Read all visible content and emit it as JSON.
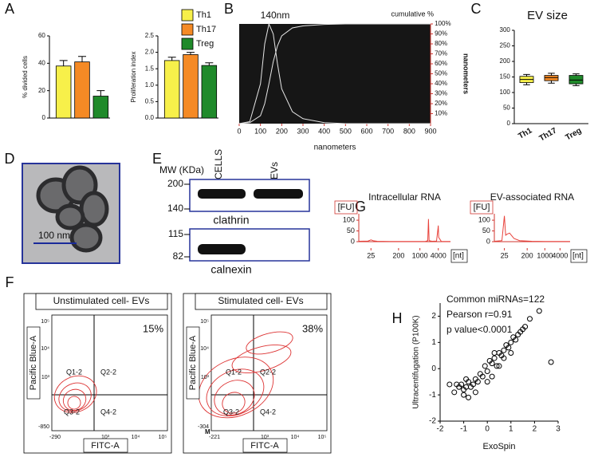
{
  "panel_labels": [
    "A",
    "B",
    "C",
    "D",
    "E",
    "F",
    "G",
    "H"
  ],
  "chart_data": [
    {
      "type": "bar",
      "ylabel": "% divided cells",
      "ylim": [
        0,
        60
      ],
      "yticks": [
        0,
        20,
        40,
        60
      ],
      "series": [
        {
          "name": "Th1",
          "color": "#f7f04a",
          "values": [
            38
          ],
          "errors": [
            4
          ]
        },
        {
          "name": "Th17",
          "color": "#f58a25",
          "values": [
            41
          ],
          "errors": [
            4
          ]
        },
        {
          "name": "Treg",
          "color": "#1f8a2a",
          "values": [
            16
          ],
          "errors": [
            4
          ]
        }
      ]
    },
    {
      "type": "bar",
      "ylabel": "Proliferation index",
      "ylim": [
        0,
        2.5
      ],
      "yticks": [
        {
          "value": 0,
          "label": "0.0"
        },
        {
          "value": 0.5,
          "label": "0.5"
        },
        {
          "value": 1,
          "label": "1.0"
        },
        {
          "value": 1.5,
          "label": "1.5"
        },
        {
          "value": 2,
          "label": "2.0"
        },
        {
          "value": 2.5,
          "label": "2.5"
        }
      ],
      "series": [
        {
          "color": "#f7f04a",
          "values": [
            1.75
          ],
          "errors": [
            0.1
          ]
        },
        {
          "color": "#f58a25",
          "values": [
            1.93
          ],
          "errors": [
            0.07
          ]
        },
        {
          "color": "#1f8a2a",
          "values": [
            1.6
          ],
          "errors": [
            0.08
          ]
        }
      ]
    },
    {
      "type": "line",
      "annotation": "140nm",
      "xlabel": "nanometers",
      "ylabel": "nanometers",
      "y2label": "cumulative %",
      "xlim": [
        0,
        900
      ],
      "xticks": [
        0,
        100,
        200,
        300,
        400,
        500,
        600,
        700,
        800,
        900
      ],
      "y2lim": [
        0,
        100
      ],
      "y2ticks": [
        {
          "value": 10,
          "label": "10%"
        },
        {
          "value": 20,
          "label": "20%"
        },
        {
          "value": 30,
          "label": "30%"
        },
        {
          "value": 40,
          "label": "40%"
        },
        {
          "value": 50,
          "label": "50%"
        },
        {
          "value": 60,
          "label": "60%"
        },
        {
          "value": 70,
          "label": "70%"
        },
        {
          "value": 80,
          "label": "80%"
        },
        {
          "value": 90,
          "label": "90%"
        },
        {
          "value": 100,
          "label": "100%"
        }
      ],
      "background": "#161616",
      "x": [
        0,
        50,
        100,
        120,
        140,
        160,
        180,
        200,
        250,
        300,
        400,
        500,
        600,
        700,
        800,
        900
      ],
      "series": [
        {
          "color": "#e6e6e6",
          "axis": "y2",
          "values": [
            0,
            2,
            40,
            80,
            100,
            90,
            60,
            35,
            12,
            5,
            1,
            0,
            0,
            0,
            0,
            0
          ]
        },
        {
          "color": "#e6e6e6",
          "axis": "y2",
          "values": [
            0,
            1,
            8,
            20,
            40,
            62,
            78,
            88,
            96,
            98,
            99.5,
            100,
            100,
            100,
            100,
            100
          ]
        }
      ]
    },
    {
      "type": "box",
      "title": "EV size",
      "ylim": [
        0,
        300
      ],
      "yticks": [
        0,
        50,
        100,
        150,
        200,
        250,
        300
      ],
      "categories": [
        "Th1",
        "Th17",
        "Treg"
      ],
      "colors": [
        "#f7f04a",
        "#f58a25",
        "#1f8a2a"
      ],
      "boxes": [
        {
          "min": 125,
          "q1": 132,
          "median": 142,
          "q3": 152,
          "max": 158
        },
        {
          "min": 130,
          "q1": 138,
          "median": 148,
          "q3": 155,
          "max": 162
        },
        {
          "min": 122,
          "q1": 128,
          "median": 140,
          "q3": 155,
          "max": 160
        }
      ]
    },
    {
      "type": "line",
      "title": "Intracellular RNA",
      "ylabel": "[FU]",
      "xlabel": "[nt]",
      "xscale": "log",
      "xlim": [
        10,
        10000
      ],
      "xticks": [
        25,
        200,
        1000,
        4000
      ],
      "ylim": [
        0,
        130
      ],
      "yticks": [
        0,
        50,
        100
      ],
      "x": [
        10,
        20,
        25,
        30,
        40,
        100,
        500,
        1500,
        1800,
        1900,
        2000,
        2500,
        3500,
        3900,
        4000,
        4100,
        5000,
        10000
      ],
      "series": [
        {
          "color": "#e8413a",
          "values": [
            2,
            3,
            8,
            4,
            2,
            1,
            1,
            1,
            5,
            105,
            5,
            2,
            3,
            60,
            75,
            20,
            1,
            1
          ]
        }
      ]
    },
    {
      "type": "line",
      "title": "EV-associated RNA",
      "ylabel": "[FU]",
      "xlabel": "[nt]",
      "xscale": "log",
      "xlim": [
        10,
        10000
      ],
      "xticks": [
        25,
        200,
        1000,
        4000
      ],
      "ylim": [
        0,
        130
      ],
      "yticks": [
        0,
        50,
        100
      ],
      "x": [
        10,
        20,
        25,
        28,
        32,
        40,
        60,
        100,
        300,
        1000,
        4000,
        10000
      ],
      "series": [
        {
          "color": "#e8413a",
          "values": [
            2,
            5,
            120,
            30,
            35,
            40,
            15,
            5,
            2,
            1,
            1,
            1
          ]
        }
      ]
    },
    {
      "type": "scatter",
      "xlabel": "ExoSpin",
      "ylabel": "Ultracentifugation (P100K)",
      "annotations": [
        "Common miRNAs=122",
        "Pearson r=0.91",
        "p value<0.0001"
      ],
      "xlim": [
        -2,
        3
      ],
      "xticks": [
        -2,
        -1,
        0,
        1,
        2,
        3
      ],
      "ylim": [
        -2,
        2.5
      ],
      "yticks": [
        -2,
        -1,
        0,
        1,
        2
      ],
      "color": "#000000",
      "x": [
        -1.6,
        -1.4,
        -1.3,
        -1.2,
        -1.1,
        -1.0,
        -0.9,
        -0.8,
        -0.7,
        -0.6,
        -0.5,
        -0.4,
        -0.3,
        -0.2,
        -0.1,
        0,
        0.1,
        0.2,
        0.3,
        0.4,
        0.5,
        0.6,
        0.7,
        0.8,
        0.9,
        1.0,
        1.1,
        1.2,
        1.3,
        1.4,
        1.5,
        1.6,
        -1.0,
        -0.5,
        0,
        0.5,
        1.0,
        -0.8,
        0.2,
        0.7,
        2.2,
        2.7,
        1.8,
        -0.9,
        0.3
      ],
      "values": [
        -0.6,
        -0.9,
        -0.6,
        -0.7,
        -0.6,
        -0.8,
        -0.7,
        -0.5,
        -0.7,
        -0.6,
        -0.4,
        -0.5,
        -0.2,
        -0.3,
        0.1,
        -0.1,
        0.3,
        0.2,
        0.4,
        0.1,
        0.6,
        0.5,
        0.7,
        0.9,
        0.8,
        1.0,
        1.2,
        1.1,
        1.3,
        1.4,
        1.5,
        1.6,
        -1.0,
        -0.9,
        -0.5,
        0.1,
        0.6,
        -1.1,
        -0.3,
        0.4,
        2.2,
        0.25,
        1.9,
        -0.4,
        0.6
      ]
    }
  ],
  "micrograph": {
    "scale_bar": "100 nm"
  },
  "blot": {
    "mw_label": "MW (KDa)",
    "lanes": [
      "CELLS",
      "EVs"
    ],
    "mw": [
      200,
      140,
      115,
      82
    ],
    "proteins": [
      "clathrin",
      "calnexin"
    ]
  },
  "flow": {
    "y_label": "Pacific Blue-A",
    "x_label": "FITC-A",
    "quadrants": [
      "Q1-2",
      "Q2-2",
      "Q3-2",
      "Q4-2"
    ],
    "panels": [
      {
        "title": "Unstimulated cell- EVs",
        "percent": "15%",
        "x_ticks": [
          "-290",
          "10³",
          "10⁴",
          "10⁵"
        ],
        "y_ticks": [
          "-850",
          "10³",
          "10⁴",
          "10⁵"
        ]
      },
      {
        "title": "Stimulated cell- EVs",
        "percent": "38%",
        "x_ticks": [
          "-221",
          "10³",
          "10⁴",
          "10⁵"
        ],
        "y_ticks": [
          "-304",
          "10³",
          "10⁴",
          "10⁵"
        ],
        "gate": "M"
      }
    ]
  }
}
